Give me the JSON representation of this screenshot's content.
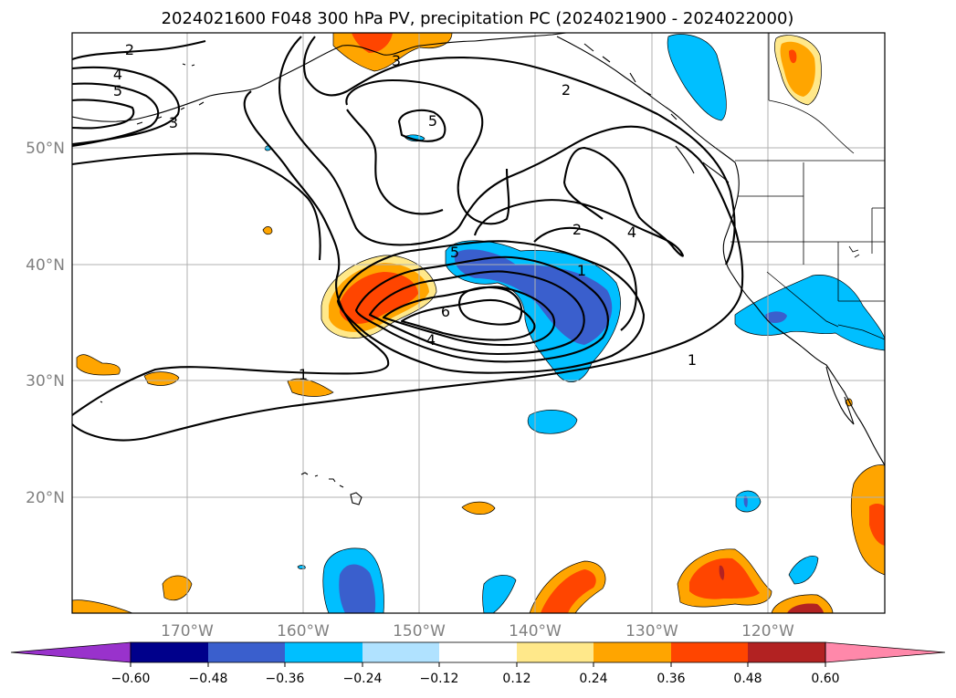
{
  "title": "2024021600 F048 300 hPa PV, precipitation PC (2024021900 - 2024022000)",
  "lon_labels": [
    "170°W",
    "160°W",
    "150°W",
    "140°W",
    "130°W",
    "120°W"
  ],
  "lat_labels": [
    "50°N",
    "40°N",
    "30°N",
    "20°N"
  ],
  "colorbar": {
    "ticks": [
      "−0.60",
      "−0.48",
      "−0.36",
      "−0.24",
      "−0.12",
      "0.12",
      "0.24",
      "0.36",
      "0.48",
      "0.60"
    ],
    "colors": [
      "#9932cc",
      "#00008b",
      "#3a5fcd",
      "#00bfff",
      "#b0e2ff",
      "#ffffff",
      "#ffe88a",
      "#ffa500",
      "#ff4500",
      "#b22222",
      "#ff88aa"
    ]
  },
  "contour_labels": [
    "2",
    "4",
    "5",
    "3",
    "3",
    "5",
    "2",
    "2",
    "4",
    "5",
    "1",
    "6",
    "4",
    "1",
    "1"
  ],
  "colors": {
    "light_yellow": "#ffe88a",
    "orange": "#ffa500",
    "red_orange": "#ff4500",
    "dark_red": "#b22222",
    "light_blue": "#b0e2ff",
    "sky_blue": "#00bfff",
    "royal_blue": "#3a5fcd"
  }
}
